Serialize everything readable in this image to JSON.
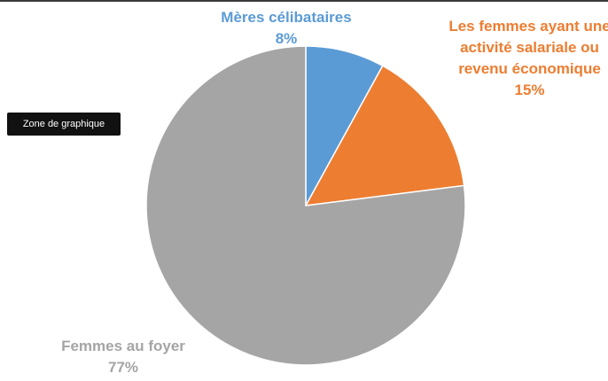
{
  "chart_data": {
    "type": "pie",
    "categories": [
      "Mères célibataires",
      "Les femmes ayant une activité salariale ou revenu économique",
      "Femmes au foyer"
    ],
    "values": [
      8,
      15,
      77
    ],
    "value_labels": [
      "8%",
      "15%",
      "77%"
    ],
    "colors": [
      "#5b9bd5",
      "#ed7d31",
      "#a5a5a5"
    ],
    "tooltip": "Zone de graphique"
  }
}
